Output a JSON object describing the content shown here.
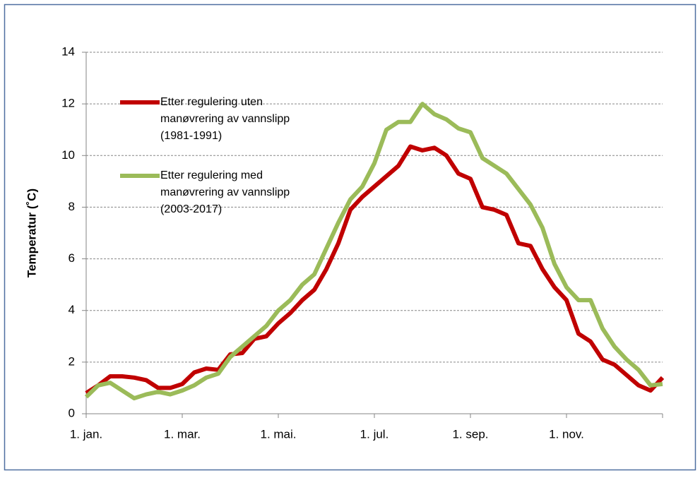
{
  "chart_data": {
    "type": "line",
    "y_label": "Temperatur (˚C)",
    "categories": [
      "1. jan.",
      null,
      null,
      null,
      null,
      null,
      null,
      null,
      "1. mar.",
      null,
      null,
      null,
      null,
      null,
      null,
      null,
      "1. mai.",
      null,
      null,
      null,
      null,
      null,
      null,
      null,
      "1. jul.",
      null,
      null,
      null,
      null,
      null,
      null,
      null,
      "1. sep.",
      null,
      null,
      null,
      null,
      null,
      null,
      null,
      "1. nov.",
      null,
      null,
      null,
      null,
      null,
      null,
      null,
      null
    ],
    "series": [
      {
        "name": "Etter regulering uten manøvrering av vannslipp (1981-1991)",
        "color": "#c00000",
        "values": [
          0.8,
          1.1,
          1.45,
          1.45,
          1.4,
          1.3,
          1.0,
          1.0,
          1.15,
          1.6,
          1.75,
          1.7,
          2.3,
          2.35,
          2.9,
          3.0,
          3.5,
          3.9,
          4.4,
          4.8,
          5.6,
          6.6,
          7.9,
          8.4,
          8.8,
          9.2,
          9.6,
          10.35,
          10.2,
          10.3,
          10.0,
          9.3,
          9.1,
          8.0,
          7.9,
          7.7,
          6.6,
          6.5,
          5.6,
          4.9,
          4.4,
          3.1,
          2.8,
          2.1,
          1.9,
          1.5,
          1.1,
          0.9,
          1.4
        ]
      },
      {
        "name": "Etter regulering med manøvrering av vannslipp (2003-2017)",
        "color": "#9bbb59",
        "values": [
          0.65,
          1.1,
          1.2,
          0.9,
          0.6,
          0.75,
          0.85,
          0.75,
          0.9,
          1.1,
          1.4,
          1.55,
          2.2,
          2.6,
          3.0,
          3.4,
          4.0,
          4.4,
          5.0,
          5.4,
          6.4,
          7.4,
          8.3,
          8.8,
          9.7,
          11.0,
          11.3,
          11.3,
          12.0,
          11.6,
          11.4,
          11.05,
          10.9,
          9.9,
          9.6,
          9.3,
          8.7,
          8.1,
          7.2,
          5.8,
          4.9,
          4.4,
          4.4,
          3.3,
          2.6,
          2.1,
          1.7,
          1.1,
          1.15
        ]
      }
    ],
    "ylim": [
      0,
      14
    ],
    "yticks": [
      0,
      2,
      4,
      6,
      8,
      10,
      12,
      14
    ],
    "grid": true
  }
}
